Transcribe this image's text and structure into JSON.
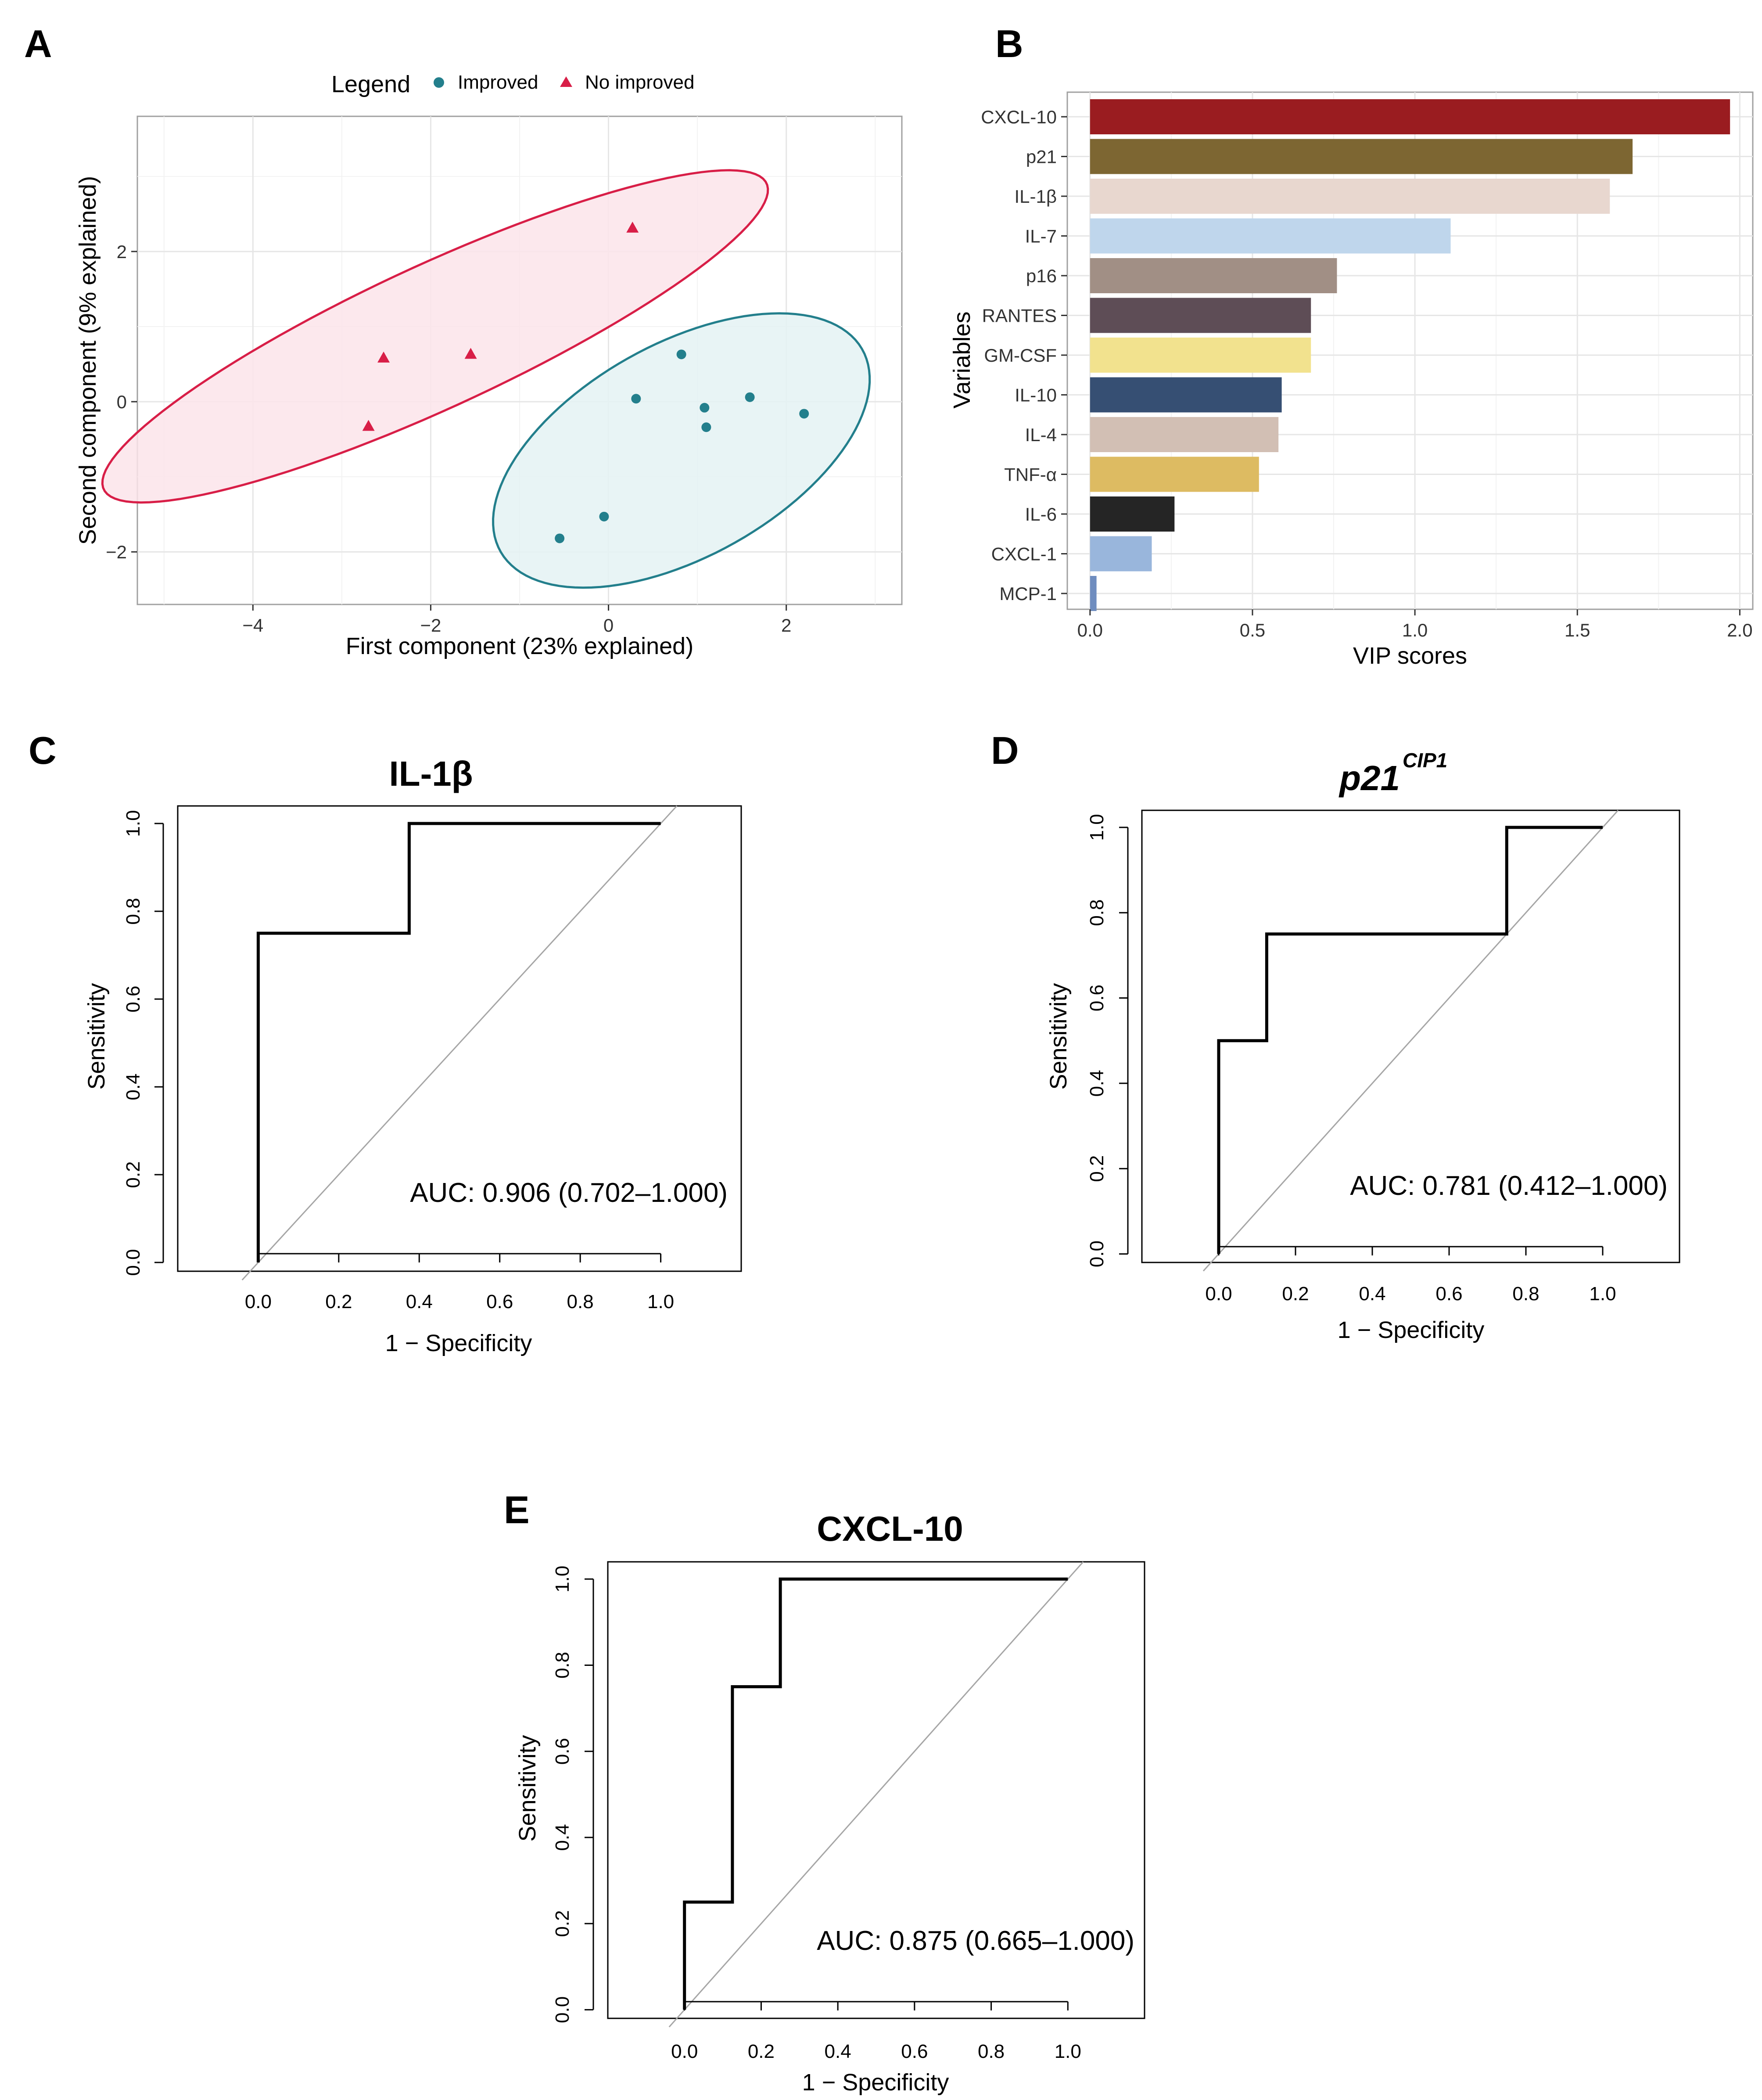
{
  "colors": {
    "improved": "#237f8c",
    "no_improved": "#d81e47",
    "improved_fill": "#e4f2f3",
    "no_improved_fill": "#fce4ea"
  },
  "chart_data": [
    {
      "id": "A",
      "panel_label": "A",
      "type": "scatter",
      "title": "",
      "xlabel": "First component (23% explained)",
      "ylabel": "Second component (9% explained)",
      "xlim": [
        -5.3,
        3.3
      ],
      "ylim": [
        -2.7,
        3.8
      ],
      "xticks": [
        -4,
        -2,
        0,
        2
      ],
      "yticks": [
        -2,
        0,
        2
      ],
      "xtick_labels": [
        "−4",
        "−2",
        "0",
        "2"
      ],
      "ytick_labels": [
        "−2",
        "0",
        "2"
      ],
      "grid": true,
      "legend": {
        "title": "Legend",
        "position": "top",
        "entries": [
          "Improved",
          "No improved"
        ]
      },
      "series": [
        {
          "name": "Improved",
          "marker": "circle",
          "points": [
            [
              0.82,
              0.63
            ],
            [
              0.31,
              0.04
            ],
            [
              1.08,
              -0.08
            ],
            [
              1.59,
              0.06
            ],
            [
              1.1,
              -0.34
            ],
            [
              2.2,
              -0.16
            ],
            [
              -0.05,
              -1.53
            ],
            [
              -0.55,
              -1.82
            ]
          ],
          "ellipse": {
            "center": [
              0.82,
              -0.65
            ],
            "semi_major": 2.45,
            "semi_minor": 1.35,
            "angle_deg": 37
          }
        },
        {
          "name": "No improved",
          "marker": "triangle",
          "points": [
            [
              0.27,
              2.31
            ],
            [
              -1.55,
              0.63
            ],
            [
              -2.53,
              0.58
            ],
            [
              -2.7,
              -0.33
            ]
          ],
          "ellipse": {
            "center": [
              -1.95,
              0.87
            ],
            "semi_major": 4.25,
            "semi_minor": 0.92,
            "angle_deg": 29
          }
        }
      ]
    },
    {
      "id": "B",
      "panel_label": "B",
      "type": "bar",
      "orientation": "horizontal",
      "title": "",
      "xlabel": "VIP scores",
      "ylabel": "Variables",
      "xlim": [
        -0.07,
        2.04
      ],
      "xticks": [
        0.0,
        0.5,
        1.0,
        1.5,
        2.0
      ],
      "xtick_labels": [
        "0.0",
        "0.5",
        "1.0",
        "1.5",
        "2.0"
      ],
      "grid": true,
      "categories": [
        "CXCL-10",
        "p21",
        "IL-1β",
        "IL-7",
        "p16",
        "RANTES",
        "GM-CSF",
        "IL-10",
        "IL-4",
        "TNF-α",
        "IL-6",
        "CXCL-1",
        "MCP-1"
      ],
      "values": [
        1.97,
        1.67,
        1.6,
        1.11,
        0.76,
        0.68,
        0.68,
        0.59,
        0.58,
        0.52,
        0.26,
        0.19,
        0.02
      ],
      "bar_colors": [
        "#9a1c20",
        "#7d6632",
        "#e8d7cf",
        "#bfd6ec",
        "#a18f85",
        "#5e4d56",
        "#f2e28e",
        "#364f73",
        "#d2bfb4",
        "#ddbb62",
        "#252525",
        "#99b6dc",
        "#6f8dbf"
      ]
    },
    {
      "id": "C",
      "panel_label": "C",
      "type": "line",
      "title": "IL-1β",
      "xlabel": "1 − Specificity",
      "ylabel": "Sensitivity",
      "xlim": [
        -0.2,
        1.2
      ],
      "ylim": [
        -0.02,
        1.04
      ],
      "xticks": [
        0.0,
        0.2,
        0.4,
        0.6,
        0.8,
        1.0
      ],
      "yticks": [
        0.0,
        0.2,
        0.4,
        0.6,
        0.8,
        1.0
      ],
      "xtick_labels": [
        "0.0",
        "0.2",
        "0.4",
        "0.6",
        "0.8",
        "1.0"
      ],
      "ytick_labels": [
        "0.0",
        "0.2",
        "0.4",
        "0.6",
        "0.8",
        "1.0"
      ],
      "roc": [
        [
          0,
          0
        ],
        [
          0,
          0.75
        ],
        [
          0.375,
          0.75
        ],
        [
          0.375,
          1.0
        ],
        [
          1.0,
          1.0
        ]
      ],
      "auc_text": "AUC: 0.906 (0.702–1.000)"
    },
    {
      "id": "D",
      "panel_label": "D",
      "type": "line",
      "title": "p21",
      "title_superscript": "CIP1",
      "xlabel": "1 − Specificity",
      "ylabel": "Sensitivity",
      "xlim": [
        -0.2,
        1.2
      ],
      "ylim": [
        -0.02,
        1.04
      ],
      "xticks": [
        0.0,
        0.2,
        0.4,
        0.6,
        0.8,
        1.0
      ],
      "yticks": [
        0.0,
        0.2,
        0.4,
        0.6,
        0.8,
        1.0
      ],
      "xtick_labels": [
        "0.0",
        "0.2",
        "0.4",
        "0.6",
        "0.8",
        "1.0"
      ],
      "ytick_labels": [
        "0.0",
        "0.2",
        "0.4",
        "0.6",
        "0.8",
        "1.0"
      ],
      "roc": [
        [
          0,
          0
        ],
        [
          0,
          0.5
        ],
        [
          0.125,
          0.5
        ],
        [
          0.125,
          0.75
        ],
        [
          0.75,
          0.75
        ],
        [
          0.75,
          1.0
        ],
        [
          1.0,
          1.0
        ]
      ],
      "auc_text": "AUC: 0.781 (0.412–1.000)"
    },
    {
      "id": "E",
      "panel_label": "E",
      "type": "line",
      "title": "CXCL-10",
      "xlabel": "1 − Specificity",
      "ylabel": "Sensitivity",
      "xlim": [
        -0.2,
        1.2
      ],
      "ylim": [
        -0.02,
        1.04
      ],
      "xticks": [
        0.0,
        0.2,
        0.4,
        0.6,
        0.8,
        1.0
      ],
      "yticks": [
        0.0,
        0.2,
        0.4,
        0.6,
        0.8,
        1.0
      ],
      "xtick_labels": [
        "0.0",
        "0.2",
        "0.4",
        "0.6",
        "0.8",
        "1.0"
      ],
      "ytick_labels": [
        "0.0",
        "0.2",
        "0.4",
        "0.6",
        "0.8",
        "1.0"
      ],
      "roc": [
        [
          0,
          0
        ],
        [
          0,
          0.25
        ],
        [
          0.125,
          0.25
        ],
        [
          0.125,
          0.75
        ],
        [
          0.25,
          0.75
        ],
        [
          0.25,
          1.0
        ],
        [
          1.0,
          1.0
        ]
      ],
      "auc_text": "AUC: 0.875 (0.665–1.000)"
    }
  ]
}
